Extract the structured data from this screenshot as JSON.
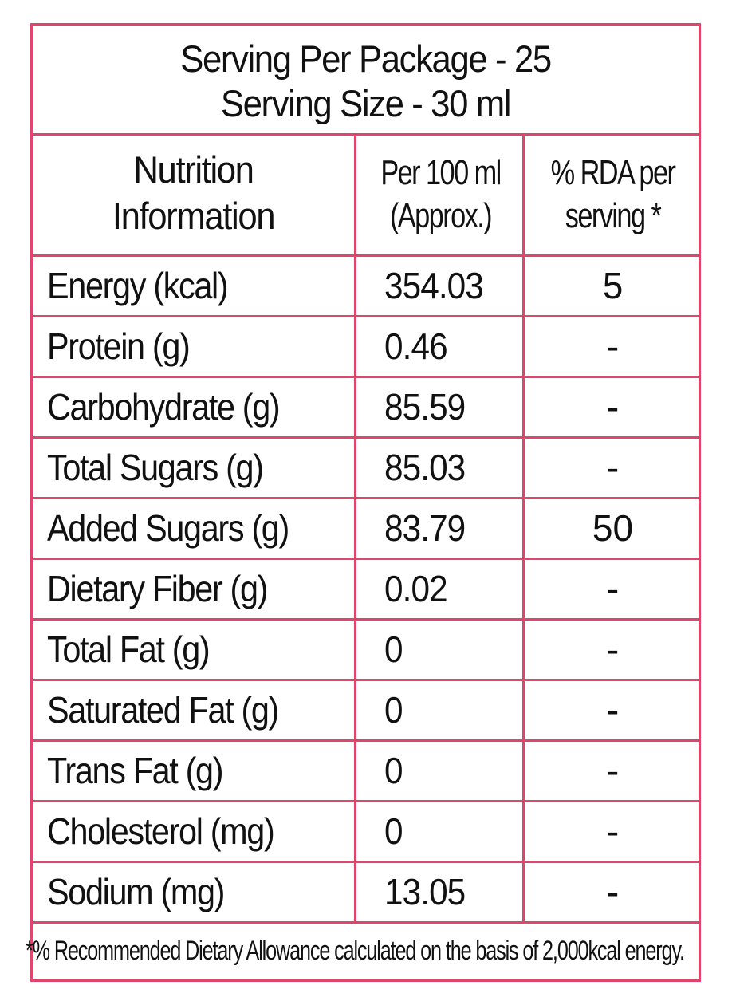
{
  "serving": {
    "per_package": "Serving Per Package - 25",
    "size": "Serving Size - 30 ml"
  },
  "table": {
    "headers": {
      "col1_line1": "Nutrition",
      "col1_line2": "Information",
      "col2_line1": "Per 100 ml",
      "col2_line2": "(Approx.)",
      "col3_line1": "% RDA per",
      "col3_line2": "serving *"
    },
    "rows": [
      {
        "nutrient": "Energy (kcal)",
        "per_100ml": "354.03",
        "rda": "5"
      },
      {
        "nutrient": "Protein (g)",
        "per_100ml": "0.46",
        "rda": "-"
      },
      {
        "nutrient": "Carbohydrate (g)",
        "per_100ml": "85.59",
        "rda": "-"
      },
      {
        "nutrient": "Total Sugars (g)",
        "per_100ml": "85.03",
        "rda": "-"
      },
      {
        "nutrient": "Added Sugars (g)",
        "per_100ml": "83.79",
        "rda": "50"
      },
      {
        "nutrient": "Dietary Fiber (g)",
        "per_100ml": "0.02",
        "rda": "-"
      },
      {
        "nutrient": "Total Fat (g)",
        "per_100ml": "0",
        "rda": "-"
      },
      {
        "nutrient": "Saturated Fat (g)",
        "per_100ml": "0",
        "rda": "-"
      },
      {
        "nutrient": "Trans Fat (g)",
        "per_100ml": "0",
        "rda": "-"
      },
      {
        "nutrient": "Cholesterol (mg)",
        "per_100ml": "0",
        "rda": "-"
      },
      {
        "nutrient": "Sodium (mg)",
        "per_100ml": "13.05",
        "rda": "-"
      }
    ]
  },
  "footnote": "*% Recommended Dietary Allowance calculated on the basis of 2,000kcal energy.",
  "colors": {
    "border": "#e0466b",
    "text": "#111111",
    "background": "#ffffff"
  }
}
